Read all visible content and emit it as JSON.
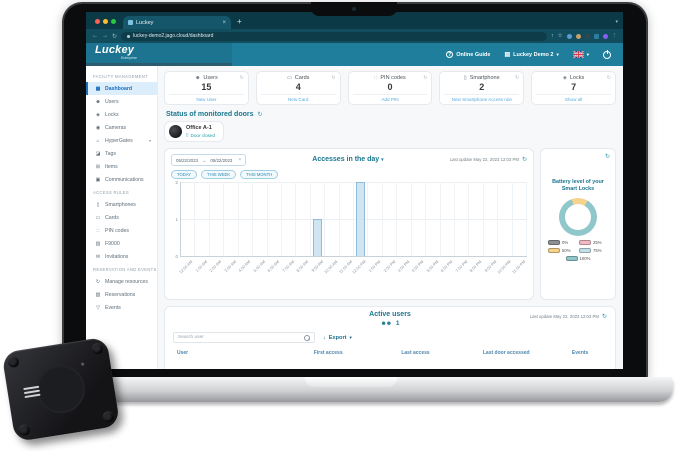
{
  "colors": {
    "navbar_teal": "#1f7e9b",
    "heading_teal": "#19768f",
    "link_blue": "#59a9dd",
    "active_sidebar_blue": "#1a6fc0",
    "bar_fill": "#cfe5f2",
    "bar_border": "#8fbcd9"
  },
  "browser": {
    "tab_title": "Luckey",
    "url": "luckey-demo2.jago.cloud/dashboard",
    "close_glyph": "×",
    "newtab_glyph": "+",
    "back_glyph": "←",
    "forward_glyph": "→",
    "reload_glyph": "↻",
    "share_glyph": "↑",
    "star_glyph": "☆",
    "menu_glyph": "⋮",
    "chevron_glyph": "▾"
  },
  "navbar": {
    "logo": "Luckey",
    "logo_sub": "Enterprise",
    "online_guide": "Online Guide",
    "account": "Luckey Demo 2",
    "question_glyph": "?",
    "building_glyph": "▤",
    "chevron_glyph": "▾"
  },
  "sidebar": {
    "sections": [
      {
        "header": "FACILITY MANAGEMENT",
        "items": [
          {
            "label": "Dashboard",
            "icon": "▦",
            "active": true
          },
          {
            "label": "Users",
            "icon": "☻"
          },
          {
            "label": "Locks",
            "icon": "◈"
          },
          {
            "label": "Cameras",
            "icon": "◉"
          },
          {
            "label": "HyperGates",
            "icon": "⌂",
            "chevron": true
          },
          {
            "label": "Tags",
            "icon": "◪"
          },
          {
            "label": "Items",
            "icon": "⊞"
          },
          {
            "label": "Communications",
            "icon": "▣"
          }
        ]
      },
      {
        "header": "ACCESS RULES",
        "items": [
          {
            "label": "Smartphones",
            "icon": "▯"
          },
          {
            "label": "Cards",
            "icon": "▭"
          },
          {
            "label": "PIN codes",
            "icon": "∷"
          },
          {
            "label": "F9000",
            "icon": "▥"
          },
          {
            "label": "Invitations",
            "icon": "✉"
          }
        ]
      },
      {
        "header": "RESERVATION AND EVENTS",
        "items": [
          {
            "label": "Manage resources",
            "icon": "↻"
          },
          {
            "label": "Reservations",
            "icon": "▧"
          },
          {
            "label": "Events",
            "icon": "▽"
          }
        ]
      }
    ]
  },
  "stats": [
    {
      "label": "Users",
      "icon": "☻",
      "value": "15",
      "link": "New User"
    },
    {
      "label": "Cards",
      "icon": "▭",
      "value": "4",
      "link": "New Card"
    },
    {
      "label": "PIN codes",
      "icon": "∷",
      "value": "0",
      "link": "Add PIN"
    },
    {
      "label": "Smartphone",
      "icon": "▯",
      "value": "2",
      "link": "New Smartphone Access rule"
    },
    {
      "label": "Locks",
      "icon": "◈",
      "value": "7",
      "link": "Show all"
    }
  ],
  "refresh_glyph": "↻",
  "monitored_doors": {
    "title": "Status of monitored doors",
    "doors": [
      {
        "name": "Office A-1",
        "status": "Door closed",
        "door_glyph": "▯"
      }
    ]
  },
  "accesses": {
    "date_from": "05/22/2023",
    "date_to": "05/22/2023",
    "arrow_glyph": "→",
    "clear_glyph": "×",
    "title_chevron": "▾",
    "last_update": "Last update May 22, 2023 12:03 PM",
    "filters": [
      "TODAY",
      "THIS WEEK",
      "THIS MONTH"
    ]
  },
  "chart_data": [
    {
      "type": "bar",
      "title": "Accesses in the day",
      "categories": [
        "12:00 AM",
        "1:00 AM",
        "2:00 AM",
        "3:00 AM",
        "4:00 AM",
        "5:00 AM",
        "6:00 AM",
        "7:00 AM",
        "8:00 AM",
        "9:00 AM",
        "10:00 AM",
        "11:00 AM",
        "12:00 PM",
        "1:00 PM",
        "2:00 PM",
        "3:00 PM",
        "4:00 PM",
        "5:00 PM",
        "6:00 PM",
        "7:00 PM",
        "8:00 PM",
        "9:00 PM",
        "10:00 PM",
        "11:00 PM"
      ],
      "values": [
        0,
        0,
        0,
        0,
        0,
        0,
        0,
        0,
        0,
        1,
        0,
        0,
        2,
        0,
        0,
        0,
        0,
        0,
        0,
        0,
        0,
        0,
        0,
        0
      ],
      "xlabel": "",
      "ylabel": "",
      "ylim": [
        0,
        2
      ],
      "yticks": [
        2,
        1,
        0
      ],
      "grid": true,
      "legend_position": "none"
    },
    {
      "type": "pie",
      "donut": true,
      "title": "Battery level of your Smart Locks",
      "labels": [
        "0%",
        "25%",
        "50%",
        "75%",
        "100%"
      ],
      "values": [
        0,
        0,
        14,
        0,
        86
      ],
      "colors": [
        "#8d9196",
        "#f3b9c5",
        "#f5d28e",
        "#c3dfe9",
        "#8fc7ca"
      ],
      "start_angle": 340,
      "legend_position": "bottom"
    }
  ],
  "active_users": {
    "title": "Active users",
    "count": "1",
    "people_glyph": "☻☻",
    "last_update": "Last update May 22, 2023 12:03 PM",
    "search_placeholder": "Search user",
    "export_label": "Export",
    "export_glyph": "↓",
    "export_chevron": "▾",
    "table_headers": [
      "User",
      "First access",
      "Last access",
      "Last door accessed",
      "Events"
    ]
  }
}
